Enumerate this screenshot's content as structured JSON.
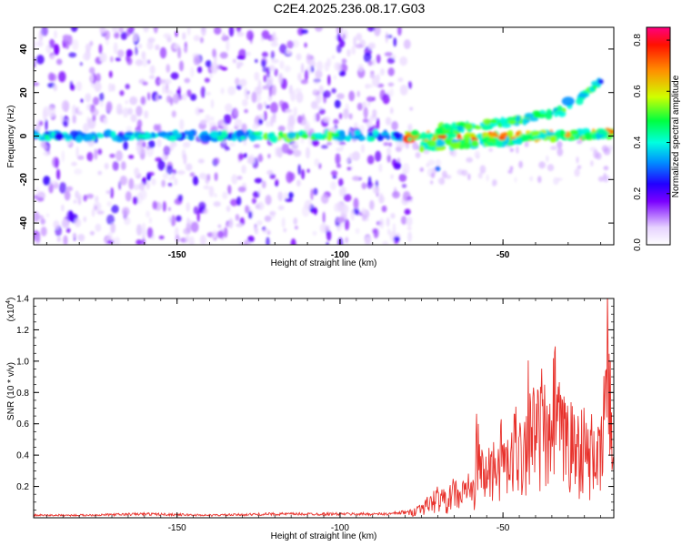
{
  "title": "C2E4.2025.236.08.17.G03",
  "chart_data": [
    {
      "type": "heatmap",
      "title": "C2E4.2025.236.08.17.G03",
      "xlabel": "Height of straight line (km)",
      "ylabel": "Frequency (Hz)",
      "xlim": [
        -194,
        -16
      ],
      "ylim": [
        -50,
        50
      ],
      "x_ticks": [
        -150,
        -100,
        -50
      ],
      "y_ticks": [
        -40,
        -20,
        0,
        20,
        40
      ],
      "colorbar": {
        "label": "Normalized spectral amplitude",
        "range": [
          0.0,
          0.85
        ],
        "ticks": [
          "0.0",
          "0.2",
          "0.4",
          "0.6",
          "0.8"
        ]
      },
      "features": [
        {
          "name": "main_band",
          "x": [
            -194,
            -80,
            -60,
            -40,
            -16
          ],
          "y": [
            0,
            0,
            -1,
            0,
            1
          ]
        },
        {
          "name": "upper_branch",
          "x": [
            -70,
            -50,
            -30,
            -20
          ],
          "y": [
            3,
            6,
            12,
            25
          ]
        },
        {
          "name": "lower_branch",
          "x": [
            -75,
            -55,
            -35,
            -18
          ],
          "y": [
            -5,
            -3,
            0,
            1
          ]
        }
      ]
    },
    {
      "type": "line",
      "xlabel": "Height of straight line (km)",
      "ylabel": "SNR (10 * v/v)",
      "y_multiplier": "(x10",
      "y_multiplier_exp": "4",
      "xlim": [
        -194,
        -16
      ],
      "ylim": [
        0,
        1.4
      ],
      "x_ticks": [
        -150,
        -100,
        -50
      ],
      "y_ticks": [
        "0.2",
        "0.4",
        "0.6",
        "0.8",
        "1.0",
        "1.2",
        "1.4"
      ],
      "series": [
        {
          "name": "SNR",
          "color": "#e8322c",
          "x": [
            -194,
            -180,
            -160,
            -140,
            -120,
            -100,
            -85,
            -78,
            -75,
            -72,
            -70,
            -67,
            -65,
            -63,
            -61,
            -59,
            -58,
            -56,
            -54,
            -52,
            -50,
            -48,
            -46,
            -44,
            -42,
            -40,
            -38,
            -36,
            -34,
            -32,
            -30,
            -28,
            -26,
            -24,
            -22,
            -20,
            -19,
            -18,
            -17,
            -16
          ],
          "y": [
            0.02,
            0.02,
            0.03,
            0.02,
            0.03,
            0.03,
            0.03,
            0.05,
            0.1,
            0.14,
            0.2,
            0.15,
            0.25,
            0.18,
            0.3,
            0.22,
            0.65,
            0.35,
            0.45,
            0.5,
            0.6,
            0.4,
            0.75,
            0.55,
            1.05,
            0.7,
            0.9,
            0.6,
            1.05,
            0.7,
            0.8,
            0.6,
            0.75,
            0.55,
            0.65,
            0.5,
            0.95,
            1.4,
            1.0,
            0.4
          ]
        }
      ]
    }
  ]
}
